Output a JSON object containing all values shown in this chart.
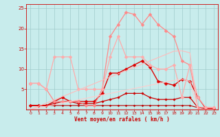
{
  "xlabel": "Vent moyen/en rafales ( km/h )",
  "background_color": "#c8ecec",
  "grid_color": "#a0cccc",
  "xlim": [
    -0.5,
    23.5
  ],
  "ylim": [
    0,
    26
  ],
  "yticks": [
    5,
    10,
    15,
    20,
    25
  ],
  "xticks": [
    0,
    1,
    2,
    3,
    4,
    5,
    6,
    7,
    8,
    9,
    10,
    11,
    12,
    13,
    14,
    15,
    16,
    17,
    18,
    19,
    20,
    21,
    22,
    23
  ],
  "lines": [
    {
      "x": [
        0,
        1,
        2,
        3,
        4,
        5,
        6,
        7,
        8,
        9,
        10,
        11,
        12,
        13,
        14,
        15,
        16,
        17,
        18,
        19,
        20,
        21,
        22,
        23
      ],
      "y": [
        1,
        1,
        1,
        1,
        1,
        1,
        1,
        1,
        1,
        1,
        1,
        1,
        1,
        1,
        1,
        1,
        1,
        1,
        1,
        1,
        1,
        0.5,
        0.3,
        0.3
      ],
      "color": "#bb0000",
      "lw": 0.8,
      "marker": "D",
      "ms": 1.5
    },
    {
      "x": [
        0,
        1,
        2,
        3,
        4,
        5,
        6,
        7,
        8,
        9,
        10,
        11,
        12,
        13,
        14,
        15,
        16,
        17,
        18,
        19,
        20,
        21,
        22,
        23
      ],
      "y": [
        1,
        1,
        1,
        1.5,
        2,
        2,
        1.5,
        1.5,
        1.5,
        2,
        2.5,
        3,
        4,
        4,
        4,
        3,
        2.5,
        2.5,
        2.5,
        3,
        3,
        0.5,
        0.3,
        0.3
      ],
      "color": "#cc0000",
      "lw": 0.9,
      "marker": "D",
      "ms": 1.8
    },
    {
      "x": [
        0,
        1,
        2,
        3,
        4,
        5,
        6,
        7,
        8,
        9,
        10,
        11,
        12,
        13,
        14,
        15,
        16,
        17,
        18,
        19,
        20,
        21,
        22,
        23
      ],
      "y": [
        1,
        1,
        1,
        2,
        3,
        2,
        2,
        2,
        2,
        4,
        9,
        9,
        10,
        11,
        12,
        10.5,
        7,
        6.5,
        6,
        7.5,
        7,
        3,
        0.3,
        0.3
      ],
      "color": "#dd0000",
      "lw": 1.0,
      "marker": "D",
      "ms": 2.5
    },
    {
      "x": [
        0,
        1,
        2,
        3,
        4,
        5,
        6,
        7,
        8,
        9,
        10,
        11,
        12,
        13,
        14,
        15,
        16,
        17,
        18,
        19,
        20,
        21,
        22,
        23
      ],
      "y": [
        6.5,
        6.5,
        5,
        2,
        2,
        2,
        2,
        1,
        1,
        5,
        18,
        21,
        24,
        23.5,
        21,
        23.5,
        21,
        19.5,
        18,
        12,
        11,
        0.5,
        0.5,
        0.5
      ],
      "color": "#ff8888",
      "lw": 0.9,
      "marker": "D",
      "ms": 2.5
    },
    {
      "x": [
        0,
        1,
        2,
        3,
        4,
        5,
        6,
        7,
        8,
        9,
        10,
        11,
        12,
        13,
        14,
        15,
        16,
        17,
        18,
        19,
        20,
        21,
        22,
        23
      ],
      "y": [
        6.5,
        6.5,
        5,
        13,
        13,
        13,
        5,
        5,
        5,
        5,
        13,
        18,
        13,
        13,
        13,
        11,
        10,
        10,
        11,
        3,
        11,
        3,
        0.5,
        0.5
      ],
      "color": "#ffaaaa",
      "lw": 0.9,
      "marker": "D",
      "ms": 2.5
    },
    {
      "x": [
        0,
        1,
        2,
        3,
        4,
        5,
        6,
        7,
        8,
        9,
        10,
        11,
        12,
        13,
        14,
        15,
        16,
        17,
        18,
        19,
        20,
        21,
        22,
        23
      ],
      "y": [
        0,
        0.8,
        1.6,
        2.4,
        3.2,
        4.0,
        4.8,
        5.6,
        6.4,
        7.2,
        8.0,
        8.8,
        9.6,
        10.4,
        11.2,
        12.0,
        12.8,
        13.6,
        14.4,
        14.5,
        14,
        0,
        0,
        0
      ],
      "color": "#ffbbbb",
      "lw": 0.8,
      "marker": null,
      "ms": 0
    },
    {
      "x": [
        0,
        1,
        2,
        3,
        4,
        5,
        6,
        7,
        8,
        9,
        10,
        11,
        12,
        13,
        14,
        15,
        16,
        17,
        18,
        19,
        20,
        21,
        22,
        23
      ],
      "y": [
        0,
        0.4,
        0.8,
        1.2,
        1.6,
        2.0,
        2.4,
        2.8,
        3.2,
        3.6,
        4.0,
        4.4,
        4.8,
        5.2,
        5.6,
        6.0,
        6.4,
        6.8,
        7.2,
        7.5,
        7,
        0,
        0,
        0
      ],
      "color": "#ffcccc",
      "lw": 0.8,
      "marker": null,
      "ms": 0
    }
  ]
}
